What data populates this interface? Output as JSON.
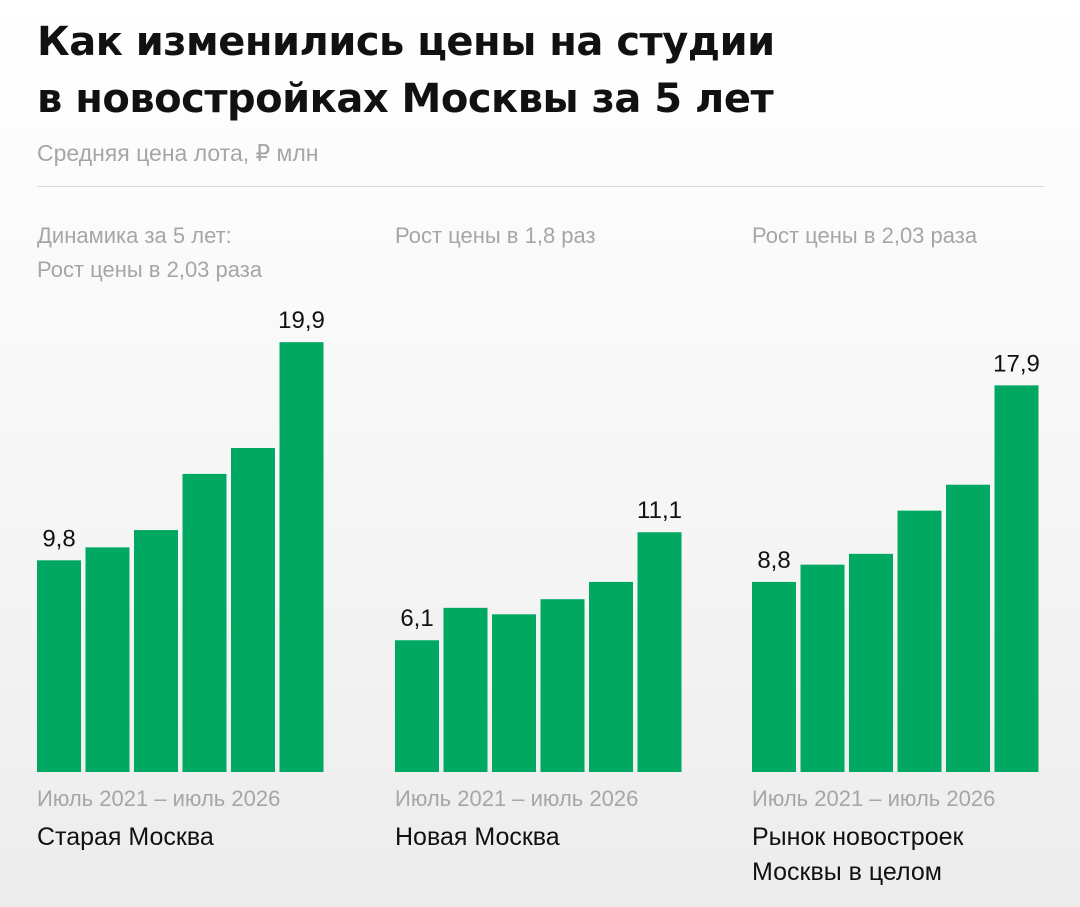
{
  "title": [
    "Как изменились цены на студии",
    "в новостройках Москвы за 5 лет"
  ],
  "subtitle": "Средняя цена лота, ₽ млн",
  "colors": {
    "bar": "#00a862",
    "label": "#111111",
    "muted": "#a6a6a6"
  },
  "chart_data": [
    {
      "type": "bar",
      "name": [
        "Старая Москва"
      ],
      "note": [
        "Динамика за 5 лет:",
        "Рост цены в 2,03 раза"
      ],
      "period": "Июль 2021 – июль 2026",
      "values": [
        9.8,
        10.4,
        11.2,
        13.8,
        15.0,
        19.9
      ],
      "data_labels": [
        "9,8",
        "",
        "",
        "",
        "",
        "19,9"
      ],
      "ylim": [
        0,
        22
      ]
    },
    {
      "type": "bar",
      "name": [
        "Новая Москва"
      ],
      "note": [
        "Рост цены в 1,8 раз"
      ],
      "period": "Июль 2021 – июль 2026",
      "values": [
        6.1,
        7.6,
        7.3,
        8.0,
        8.8,
        11.1
      ],
      "data_labels": [
        "6,1",
        "",
        "",
        "",
        "",
        "11,1"
      ],
      "ylim": [
        0,
        22
      ]
    },
    {
      "type": "bar",
      "name": [
        "Рынок новостроек",
        "Москвы в целом"
      ],
      "note": [
        "Рост цены в 2,03 раза"
      ],
      "period": "Июль 2021 – июль 2026",
      "values": [
        8.8,
        9.6,
        10.1,
        12.1,
        13.3,
        17.9
      ],
      "data_labels": [
        "8,8",
        "",
        "",
        "",
        "",
        "17,9"
      ],
      "ylim": [
        0,
        22
      ]
    }
  ]
}
